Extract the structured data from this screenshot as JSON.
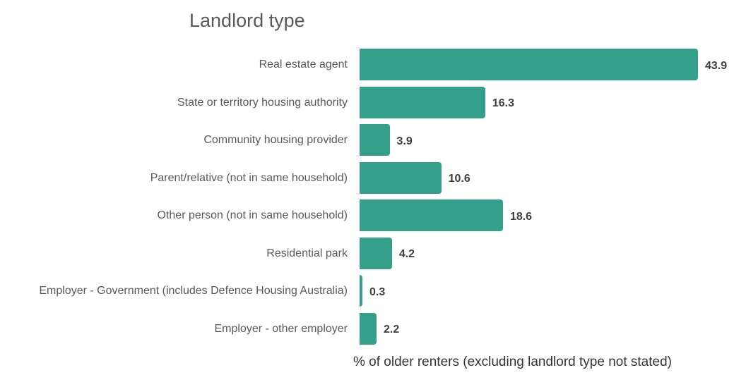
{
  "chart_data": {
    "type": "bar",
    "orientation": "horizontal",
    "title": "Landlord type",
    "xlabel": "% of older renters (excluding landlord type not stated)",
    "ylabel": "",
    "xlim": [
      0,
      43.9
    ],
    "grid": false,
    "legend": "none",
    "bar_color": "#35a08a",
    "categories": [
      "Real estate agent",
      "State or territory housing authority",
      "Community housing provider",
      "Parent/relative (not in same household)",
      "Other person (not in same household)",
      "Residential park",
      "Employer - Government (includes Defence Housing Australia)",
      "Employer - other employer"
    ],
    "values": [
      43.9,
      16.3,
      3.9,
      10.6,
      18.6,
      4.2,
      0.3,
      2.2
    ],
    "value_labels": [
      "43.9",
      "16.3",
      "3.9",
      "10.6",
      "18.6",
      "4.2",
      "0.3",
      "2.2"
    ]
  }
}
